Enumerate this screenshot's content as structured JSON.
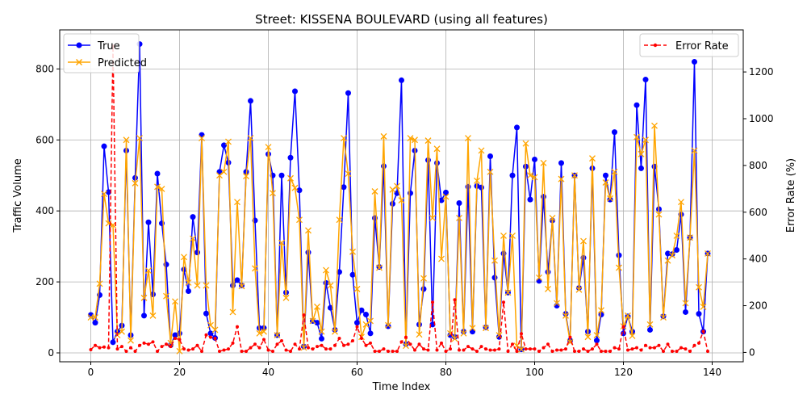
{
  "chart_data": {
    "type": "line",
    "title": "Street: KISSENA BOULEVARD (using all features)",
    "xlabel": "Time Index",
    "ylabel": "Traffic Volume",
    "ylabel_right": "Error Rate (%)",
    "xlim": [
      -7,
      147
    ],
    "ylim": [
      -25,
      910
    ],
    "ylim_right": [
      -40,
      1380
    ],
    "xticks": [
      0,
      20,
      40,
      60,
      80,
      100,
      120,
      140
    ],
    "yticks": [
      0,
      200,
      400,
      600,
      800
    ],
    "yticks_right": [
      0,
      200,
      400,
      600,
      800,
      1000,
      1200
    ],
    "grid": true,
    "legend_left_placement": "top-left",
    "legend_right_placement": "top-right",
    "x": [
      0,
      1,
      2,
      3,
      4,
      5,
      6,
      7,
      8,
      9,
      10,
      11,
      12,
      13,
      14,
      15,
      16,
      17,
      18,
      19,
      20,
      21,
      22,
      23,
      24,
      25,
      26,
      27,
      28,
      29,
      30,
      31,
      32,
      33,
      34,
      35,
      36,
      37,
      38,
      39,
      40,
      41,
      42,
      43,
      44,
      45,
      46,
      47,
      48,
      49,
      50,
      51,
      52,
      53,
      54,
      55,
      56,
      57,
      58,
      59,
      60,
      61,
      62,
      63,
      64,
      65,
      66,
      67,
      68,
      69,
      70,
      71,
      72,
      73,
      74,
      75,
      76,
      77,
      78,
      79,
      80,
      81,
      82,
      83,
      84,
      85,
      86,
      87,
      88,
      89,
      90,
      91,
      92,
      93,
      94,
      95,
      96,
      97,
      98,
      99,
      100,
      101,
      102,
      103,
      104,
      105,
      106,
      107,
      108,
      109,
      110,
      111,
      112,
      113,
      114,
      115,
      116,
      117,
      118,
      119,
      120,
      121,
      122,
      123,
      124,
      125,
      126,
      127,
      128,
      129,
      130,
      131,
      132,
      133,
      134,
      135,
      136,
      137,
      138,
      139
    ],
    "series": [
      {
        "name": "True",
        "axis": "left",
        "color": "#0000ff",
        "marker": "circle",
        "linestyle": "solid",
        "values": [
          107,
          85,
          163,
          582,
          453,
          30,
          60,
          77,
          570,
          50,
          493,
          870,
          105,
          368,
          165,
          505,
          365,
          249,
          22,
          50,
          55,
          235,
          174,
          383,
          283,
          614,
          111,
          55,
          42,
          510,
          585,
          536,
          190,
          205,
          190,
          510,
          710,
          373,
          70,
          70,
          560,
          500,
          50,
          500,
          170,
          550,
          737,
          458,
          18,
          283,
          90,
          85,
          40,
          197,
          127,
          65,
          228,
          467,
          732,
          220,
          85,
          120,
          108,
          55,
          380,
          242,
          526,
          75,
          420,
          450,
          768,
          25,
          450,
          570,
          80,
          180,
          543,
          80,
          535,
          430,
          452,
          50,
          45,
          422,
          60,
          468,
          60,
          470,
          466,
          72,
          554,
          212,
          45,
          280,
          170,
          500,
          635,
          10,
          525,
          432,
          545,
          203,
          440,
          228,
          373,
          133,
          535,
          110,
          35,
          500,
          183,
          268,
          60,
          520,
          35,
          108,
          500,
          432,
          622,
          275,
          55,
          103,
          60,
          698,
          520,
          770,
          65,
          525,
          405,
          103,
          280,
          278,
          290,
          390,
          115,
          325,
          820,
          110,
          60,
          280
        ]
      },
      {
        "name": "Predicted",
        "axis": "left",
        "color": "#ffa500",
        "marker": "x",
        "linestyle": "solid",
        "values": [
          100,
          100,
          195,
          448,
          365,
          360,
          50,
          60,
          600,
          35,
          478,
          605,
          155,
          232,
          105,
          468,
          462,
          160,
          28,
          145,
          5,
          270,
          198,
          322,
          190,
          605,
          190,
          78,
          65,
          500,
          510,
          595,
          115,
          425,
          188,
          498,
          605,
          238,
          55,
          60,
          580,
          450,
          50,
          310,
          155,
          492,
          465,
          375,
          15,
          345,
          90,
          130,
          60,
          233,
          190,
          60,
          375,
          605,
          505,
          285,
          180,
          45,
          80,
          90,
          455,
          240,
          610,
          78,
          460,
          470,
          430,
          20,
          605,
          600,
          52,
          210,
          598,
          380,
          575,
          265,
          440,
          55,
          40,
          380,
          55,
          605,
          70,
          485,
          570,
          70,
          510,
          260,
          50,
          330,
          170,
          330,
          20,
          10,
          590,
          500,
          495,
          212,
          535,
          180,
          380,
          140,
          490,
          105,
          30,
          500,
          178,
          315,
          45,
          548,
          50,
          120,
          480,
          435,
          510,
          240,
          75,
          105,
          48,
          608,
          560,
          600,
          80,
          640,
          390,
          100,
          260,
          275,
          330,
          425,
          140,
          325,
          570,
          185,
          130,
          280
        ]
      },
      {
        "name": "Error Rate",
        "axis": "right",
        "color": "#ff0000",
        "marker": "dot",
        "linestyle": "dashed",
        "values": [
          12,
          30,
          20,
          23,
          20,
          1310,
          15,
          25,
          5,
          20,
          5,
          30,
          40,
          35,
          45,
          5,
          25,
          35,
          25,
          60,
          55,
          15,
          10,
          15,
          30,
          5,
          75,
          65,
          60,
          5,
          10,
          15,
          40,
          110,
          5,
          5,
          20,
          35,
          20,
          55,
          10,
          5,
          35,
          50,
          10,
          5,
          35,
          15,
          160,
          20,
          15,
          25,
          30,
          15,
          15,
          30,
          60,
          30,
          35,
          50,
          110,
          60,
          30,
          40,
          5,
          5,
          15,
          5,
          5,
          5,
          45,
          65,
          35,
          10,
          35,
          15,
          10,
          215,
          10,
          40,
          5,
          15,
          225,
          10,
          10,
          25,
          15,
          5,
          25,
          15,
          10,
          10,
          15,
          215,
          5,
          35,
          5,
          80,
          15,
          15,
          15,
          5,
          20,
          35,
          5,
          10,
          10,
          15,
          65,
          5,
          5,
          15,
          5,
          15,
          35,
          5,
          5,
          5,
          20,
          15,
          110,
          10,
          15,
          20,
          10,
          30,
          20,
          20,
          30,
          5,
          35,
          5,
          5,
          20,
          15,
          5,
          30,
          40,
          90,
          5
        ]
      }
    ]
  }
}
